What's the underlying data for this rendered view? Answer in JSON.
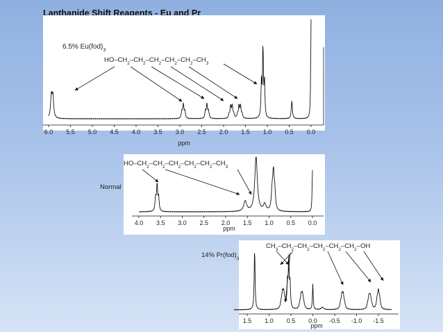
{
  "title": "Lanthanide Shift Reagents - Eu and Pr",
  "chart_data": [
    {
      "type": "line",
      "label": "6.5% Eu(fod)",
      "label_sub": "3",
      "xlabel": "ppm",
      "xlim": [
        6.0,
        0.0
      ],
      "xticks": [
        6.0,
        5.5,
        5.0,
        4.5,
        4.0,
        3.5,
        3.0,
        2.5,
        2.0,
        1.5,
        1.0,
        0.5,
        0.0
      ],
      "xtick_labels": [
        "6.0",
        "5.5",
        "5.0",
        "4.5",
        "4.0",
        "3.5",
        "3.0",
        "2.5",
        "2.0",
        "1.5",
        "1.0",
        "0.5",
        "0.0"
      ],
      "structure": [
        "HO",
        "CH",
        "2",
        "CH",
        "2",
        "CH",
        "2",
        "CH",
        "2",
        "CH",
        "2",
        "CH",
        "3"
      ],
      "peaks": [
        {
          "ppm": 5.92,
          "height": 0.22,
          "width": 0.02,
          "mult": 2,
          "J": 0.035
        },
        {
          "ppm": 2.92,
          "height": 0.14,
          "width": 0.015,
          "mult": 3,
          "J": 0.035
        },
        {
          "ppm": 2.38,
          "height": 0.14,
          "width": 0.015,
          "mult": 3,
          "J": 0.035
        },
        {
          "ppm": 1.82,
          "height": 0.12,
          "width": 0.015,
          "mult": 4,
          "J": 0.035
        },
        {
          "ppm": 1.63,
          "height": 0.12,
          "width": 0.015,
          "mult": 4,
          "J": 0.035
        },
        {
          "ppm": 1.1,
          "height": 0.7,
          "width": 0.012,
          "mult": 3,
          "J": 0.035
        },
        {
          "ppm": 0.44,
          "height": 0.18,
          "width": 0.015,
          "mult": 1,
          "J": 0
        },
        {
          "ppm": 0.0,
          "height": 1.0,
          "width": 0.01,
          "mult": 1,
          "J": 0
        }
      ]
    },
    {
      "type": "line",
      "label": "Normal",
      "xlabel": "ppm",
      "xlim": [
        4.0,
        0.0
      ],
      "xticks": [
        4.0,
        3.5,
        3.0,
        2.5,
        2.0,
        1.5,
        1.0,
        0.5,
        0.0
      ],
      "xtick_labels": [
        "4.0",
        "3.5",
        "3.0",
        "2.5",
        "2.0",
        "1.5",
        "1.0",
        "0.5",
        "0.0"
      ],
      "structure": [
        "HO",
        "CH",
        "2",
        "CH",
        "2",
        "CH",
        "2",
        "CH",
        "2",
        "CH",
        "2",
        "CH",
        "3"
      ],
      "peaks": [
        {
          "ppm": 3.58,
          "height": 0.45,
          "width": 0.015,
          "mult": 3,
          "J": 0.035
        },
        {
          "ppm": 1.55,
          "height": 0.18,
          "width": 0.04,
          "mult": 1,
          "J": 0
        },
        {
          "ppm": 1.3,
          "height": 0.95,
          "width": 0.035,
          "mult": 1,
          "J": 0
        },
        {
          "ppm": 1.1,
          "height": 0.12,
          "width": 0.035,
          "mult": 1,
          "J": 0
        },
        {
          "ppm": 0.9,
          "height": 0.6,
          "width": 0.02,
          "mult": 3,
          "J": 0.03
        },
        {
          "ppm": 0.0,
          "height": 0.72,
          "width": 0.01,
          "mult": 1,
          "J": 0
        }
      ]
    },
    {
      "type": "line",
      "label": "14% Pr(fod)",
      "label_sub": "3",
      "xlabel": "ppm",
      "xlim": [
        1.8,
        -1.8
      ],
      "xticks": [
        1.5,
        1.0,
        0.5,
        0.0,
        -0.5,
        -1.0,
        -1.5
      ],
      "xtick_labels": [
        "1.5",
        "1.0",
        "0.5",
        "0.0",
        "-0.5",
        "-1.0",
        "-1.5"
      ],
      "structure": [
        "CH",
        "3",
        "CH",
        "2",
        "CH",
        "2",
        "CH",
        "2",
        "CH",
        "2",
        "CH",
        "2",
        "OH"
      ],
      "peaks": [
        {
          "ppm": 1.33,
          "height": 0.98,
          "width": 0.012,
          "mult": 1,
          "J": 0
        },
        {
          "ppm": 0.68,
          "height": 0.22,
          "width": 0.02,
          "mult": 4,
          "J": 0.03
        },
        {
          "ppm": 0.55,
          "height": 0.8,
          "width": 0.012,
          "mult": 3,
          "J": 0.03
        },
        {
          "ppm": 0.25,
          "height": 0.2,
          "width": 0.02,
          "mult": 4,
          "J": 0.03
        },
        {
          "ppm": 0.0,
          "height": 0.42,
          "width": 0.01,
          "mult": 1,
          "J": 0
        },
        {
          "ppm": -0.22,
          "height": 0.04,
          "width": 0.03,
          "mult": 1,
          "J": 0
        },
        {
          "ppm": -0.68,
          "height": 0.2,
          "width": 0.02,
          "mult": 4,
          "J": 0.03
        },
        {
          "ppm": -1.3,
          "height": 0.18,
          "width": 0.02,
          "mult": 4,
          "J": 0.03
        },
        {
          "ppm": -1.5,
          "height": 0.26,
          "width": 0.02,
          "mult": 3,
          "J": 0.03
        }
      ]
    }
  ]
}
